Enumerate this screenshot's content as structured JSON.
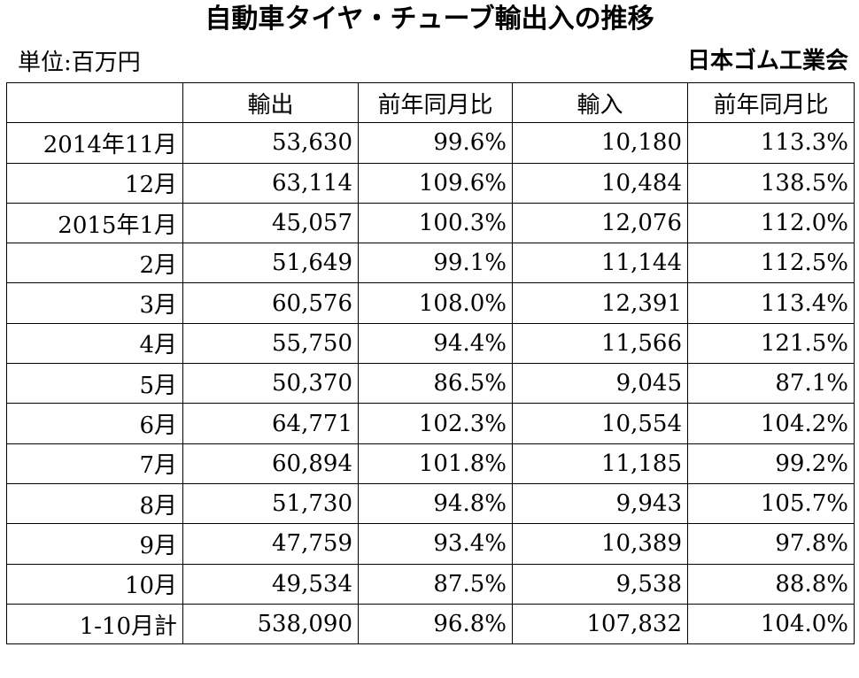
{
  "title": "自動車タイヤ・チューブ輸出入の推移",
  "unit": "単位:百万円",
  "source": "日本ゴム工業会",
  "chart_data": {
    "type": "table",
    "columns": [
      "",
      "輸出",
      "前年同月比",
      "輸入",
      "前年同月比"
    ],
    "rows": [
      [
        "2014年11月",
        "53,630",
        "99.6%",
        "10,180",
        "113.3%"
      ],
      [
        "12月",
        "63,114",
        "109.6%",
        "10,484",
        "138.5%"
      ],
      [
        "2015年1月",
        "45,057",
        "100.3%",
        "12,076",
        "112.0%"
      ],
      [
        "2月",
        "51,649",
        "99.1%",
        "11,144",
        "112.5%"
      ],
      [
        "3月",
        "60,576",
        "108.0%",
        "12,391",
        "113.4%"
      ],
      [
        "4月",
        "55,750",
        "94.4%",
        "11,566",
        "121.5%"
      ],
      [
        "5月",
        "50,370",
        "86.5%",
        "9,045",
        "87.1%"
      ],
      [
        "6月",
        "64,771",
        "102.3%",
        "10,554",
        "104.2%"
      ],
      [
        "7月",
        "60,894",
        "101.8%",
        "11,185",
        "99.2%"
      ],
      [
        "8月",
        "51,730",
        "94.8%",
        "9,943",
        "105.7%"
      ],
      [
        "9月",
        "47,759",
        "93.4%",
        "10,389",
        "97.8%"
      ],
      [
        "10月",
        "49,534",
        "87.5%",
        "9,538",
        "88.8%"
      ],
      [
        "1-10月計",
        "538,090",
        "96.8%",
        "107,832",
        "104.0%"
      ]
    ]
  }
}
